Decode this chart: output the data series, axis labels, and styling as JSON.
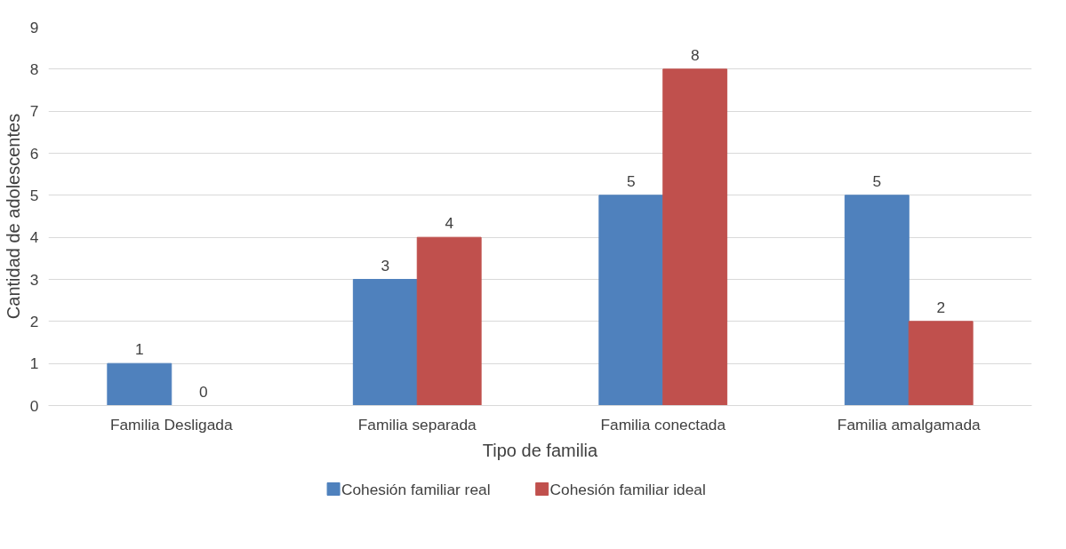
{
  "chart_data": {
    "type": "bar",
    "xlabel": "Tipo de familia",
    "ylabel": "Cantidad de adolescentes",
    "categories": [
      "Familia Desligada",
      "Familia separada",
      "Familia conectada",
      "Familia amalgamada"
    ],
    "series": [
      {
        "name": "Cohesión familiar real",
        "color": "#4f81bd",
        "values": [
          1,
          3,
          5,
          5
        ]
      },
      {
        "name": "Cohesión familiar ideal",
        "color": "#c0504d",
        "values": [
          0,
          4,
          8,
          2
        ]
      }
    ],
    "ylim": [
      0,
      9
    ],
    "yticks": [
      0,
      1,
      2,
      3,
      4,
      5,
      6,
      7,
      8,
      9
    ],
    "grid": "y",
    "legend": "bottom",
    "data_labels": true
  }
}
